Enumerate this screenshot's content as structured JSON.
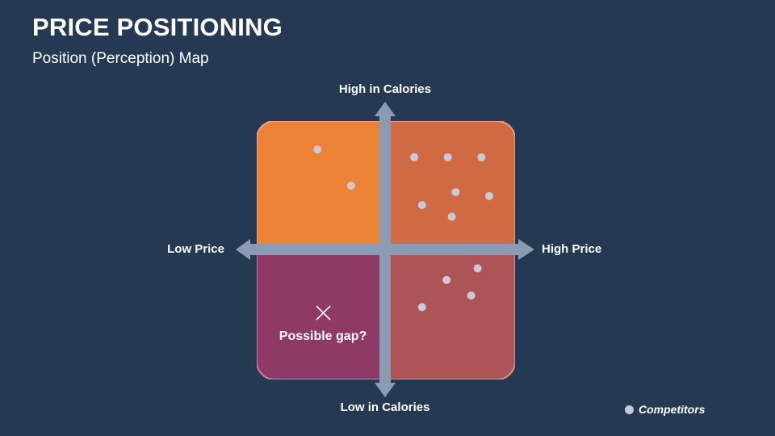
{
  "slide": {
    "title": "PRICE POSITIONING",
    "subtitle": "Position (Perception) Map"
  },
  "axes": {
    "top": "High in Calories",
    "bottom": "Low in Calories",
    "left": "Low Price",
    "right": "High Price"
  },
  "quadrants": {
    "top_left_color": "#ec8236",
    "top_right_color": "#cf6a43",
    "bottom_left_color": "#8f3a66",
    "bottom_right_color": "#ad5456",
    "arrow_color": "#8a9bb3"
  },
  "gap_marker": {
    "label": "Possible gap?",
    "icon": "x-mark-icon"
  },
  "competitors": {
    "dot_color": "#c7cad8",
    "points": [
      {
        "price": -0.53,
        "calories": 0.78
      },
      {
        "price": -0.27,
        "calories": 0.5
      },
      {
        "price": 0.22,
        "calories": 0.72
      },
      {
        "price": 0.48,
        "calories": 0.72
      },
      {
        "price": 0.74,
        "calories": 0.72
      },
      {
        "price": 0.54,
        "calories": 0.45
      },
      {
        "price": 0.8,
        "calories": 0.42
      },
      {
        "price": 0.28,
        "calories": 0.35
      },
      {
        "price": 0.51,
        "calories": 0.26
      },
      {
        "price": 0.71,
        "calories": -0.14
      },
      {
        "price": 0.47,
        "calories": -0.23
      },
      {
        "price": 0.66,
        "calories": -0.35
      },
      {
        "price": 0.28,
        "calories": -0.44
      }
    ]
  },
  "legend": {
    "label": "Competitors"
  }
}
